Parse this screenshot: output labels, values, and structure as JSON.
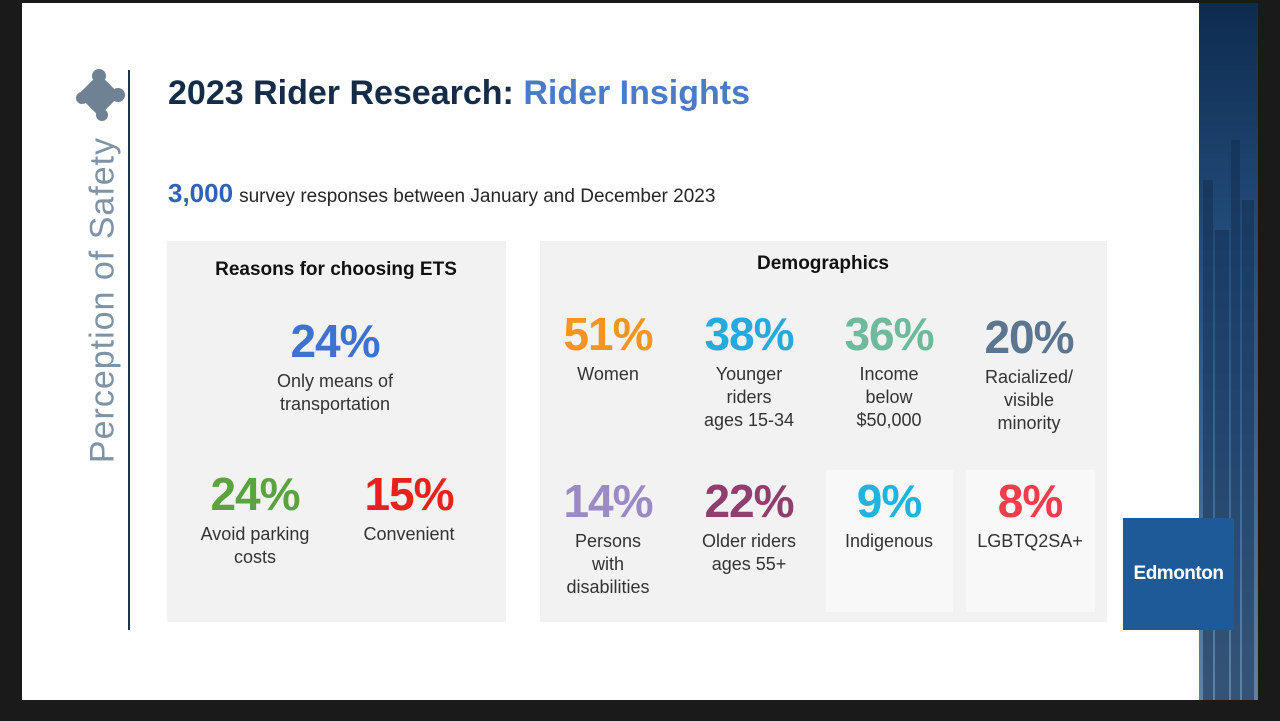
{
  "side_title": "Perception of Safety",
  "title": {
    "main": "2023 Rider Research: ",
    "accent": "Rider Insights"
  },
  "subtitle": {
    "number": "3,000",
    "text": "survey responses between January and December 2023"
  },
  "reasons": {
    "heading": "Reasons for choosing ETS",
    "stats": [
      {
        "value": "24%",
        "label": "Only means of\ntransportation",
        "color": "#3f72cf"
      },
      {
        "value": "24%",
        "label": "Avoid parking\ncosts",
        "color": "#5aa33f"
      },
      {
        "value": "15%",
        "label": "Convenient",
        "color": "#e8211c"
      }
    ]
  },
  "demographics": {
    "heading": "Demographics",
    "stats": [
      {
        "value": "51%",
        "label": "Women",
        "color": "#f7941d"
      },
      {
        "value": "38%",
        "label": "Younger\nriders\nages 15-34",
        "color": "#27a9de"
      },
      {
        "value": "36%",
        "label": "Income\nbelow\n$50,000",
        "color": "#6dbb9c"
      },
      {
        "value": "20%",
        "label": "Racialized/\nvisible\nminority",
        "color": "#5d7690"
      },
      {
        "value": "14%",
        "label": "Persons\nwith\ndisabilities",
        "color": "#9b8ac4"
      },
      {
        "value": "22%",
        "label": "Older riders\nages 55+",
        "color": "#8e3f6e"
      },
      {
        "value": "9%",
        "label": "Indigenous",
        "color": "#1fb3e0"
      },
      {
        "value": "8%",
        "label": "LGBTQ2SA+",
        "color": "#ef3e4a"
      }
    ]
  },
  "logo": {
    "text": "Edmonton"
  },
  "colors": {
    "title": "#142c47",
    "accent": "#4a7cc6",
    "side_title": "#7e93a6",
    "panel": "#f2f2f2",
    "logo_bg": "#1f5a98"
  }
}
